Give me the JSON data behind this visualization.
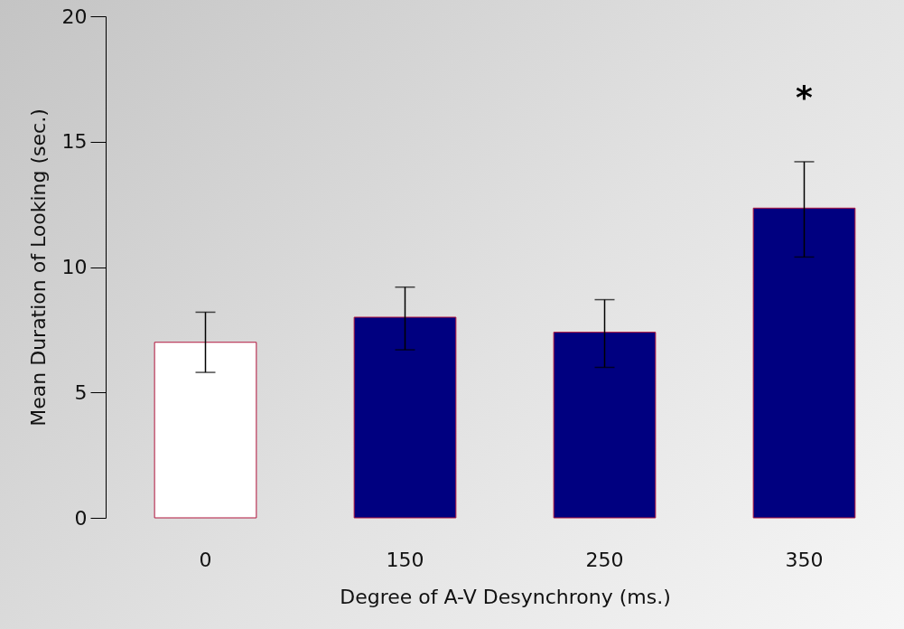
{
  "chart_data": {
    "type": "bar",
    "xlabel": "Degree of A-V Desynchrony (ms.)",
    "ylabel": "Mean Duration of Looking (sec.)",
    "categories": [
      "0",
      "150",
      "250",
      "350"
    ],
    "values": [
      7.0,
      8.0,
      7.4,
      12.35
    ],
    "colors": [
      "#ffffff",
      "#000080",
      "#000080",
      "#000080"
    ],
    "errors": [
      [
        5.8,
        8.2
      ],
      [
        6.7,
        9.2
      ],
      [
        6.0,
        8.7
      ],
      [
        10.4,
        14.2
      ]
    ],
    "ylim": [
      0,
      20
    ],
    "yticks": [
      0,
      5,
      10,
      15,
      20
    ],
    "annotations": [
      "*"
    ]
  }
}
